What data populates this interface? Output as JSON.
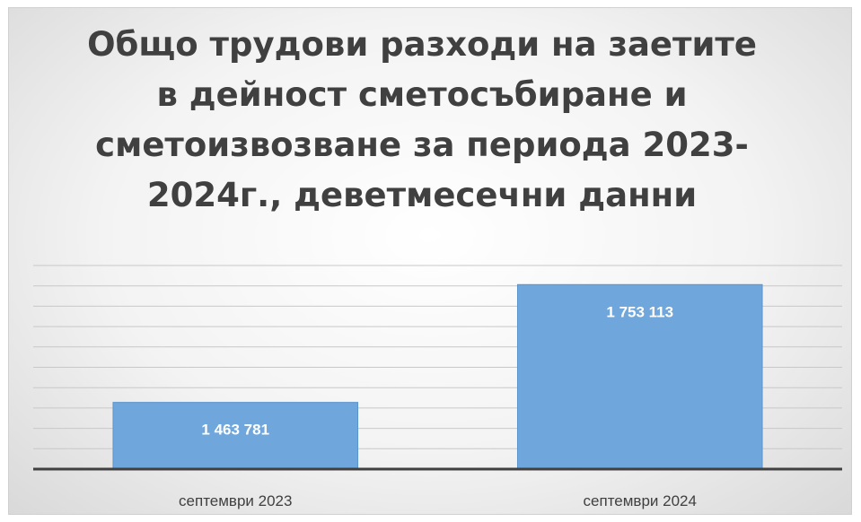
{
  "chart_data": {
    "type": "bar",
    "title": "Общо трудови разходи на заетите в дейност сметосъбиране и сметоизвозване за периода 2023-2024г., деветмесечни данни",
    "categories": [
      "септември 2023",
      "септември 2024"
    ],
    "values": [
      1463781,
      1753113
    ],
    "value_labels": [
      "1 463 781",
      "1 753 113"
    ],
    "ylim": [
      1300000,
      1800000
    ],
    "gridlines": [
      1350000,
      1400000,
      1450000,
      1500000,
      1550000,
      1600000,
      1650000,
      1700000,
      1750000,
      1800000
    ],
    "grid": true,
    "legend": "none",
    "colors": {
      "bar": "#6fa6db",
      "bar_edge": "#5b93cc",
      "grid": "#c8c8c8",
      "axis": "#404040"
    }
  }
}
